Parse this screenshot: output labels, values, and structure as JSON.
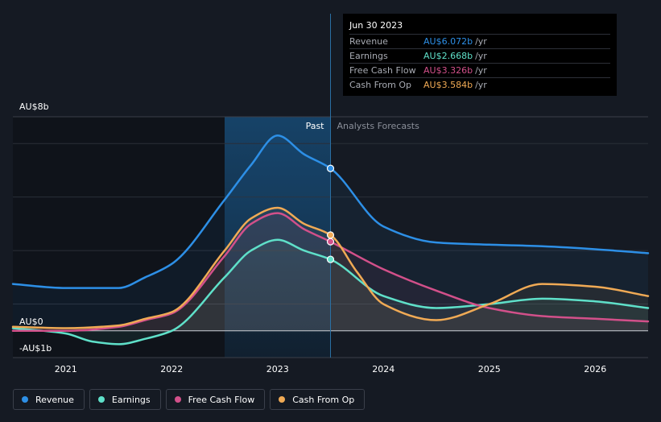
{
  "tooltip": {
    "date": "Jun 30 2023",
    "rows": [
      {
        "label": "Revenue",
        "value": "AU$6.072b",
        "unit": "/yr",
        "color": "#2d8fe6"
      },
      {
        "label": "Earnings",
        "value": "AU$2.668b",
        "unit": "/yr",
        "color": "#5fe0c9"
      },
      {
        "label": "Free Cash Flow",
        "value": "AU$3.326b",
        "unit": "/yr",
        "color": "#d2508a"
      },
      {
        "label": "Cash From Op",
        "value": "AU$3.584b",
        "unit": "/yr",
        "color": "#f0aa55"
      }
    ]
  },
  "legend": [
    {
      "label": "Revenue",
      "color": "#2d8fe6"
    },
    {
      "label": "Earnings",
      "color": "#5fe0c9"
    },
    {
      "label": "Free Cash Flow",
      "color": "#d2508a"
    },
    {
      "label": "Cash From Op",
      "color": "#f0aa55"
    }
  ],
  "chart_data": {
    "type": "line",
    "title": "",
    "y_unit": "AU$ billions",
    "ylim": [
      -1,
      8
    ],
    "xlim": [
      2020.5,
      2026.5
    ],
    "ytick_labels": [
      {
        "value": 8,
        "label": "AU$8b"
      },
      {
        "value": 0,
        "label": "AU$0"
      },
      {
        "value": -1,
        "label": "-AU$1b"
      }
    ],
    "xtick_labels": [
      {
        "value": 2021,
        "label": "2021"
      },
      {
        "value": 2022,
        "label": "2022"
      },
      {
        "value": 2023,
        "label": "2023"
      },
      {
        "value": 2024,
        "label": "2024"
      },
      {
        "value": 2025,
        "label": "2025"
      },
      {
        "value": 2026,
        "label": "2026"
      }
    ],
    "past_label": "Past",
    "forecast_label": "Analysts Forecasts",
    "highlight_range": [
      2022.5,
      2023.5
    ],
    "divider_x": 2023.5,
    "series": [
      {
        "name": "Revenue",
        "color": "#2d8fe6",
        "x": [
          2020.5,
          2021.0,
          2021.5,
          2021.75,
          2022.0,
          2022.5,
          2022.75,
          2023.0,
          2023.25,
          2023.5,
          2024.0,
          2024.5,
          2025.0,
          2025.5,
          2026.0,
          2026.5
        ],
        "y": [
          1.75,
          1.6,
          1.6,
          2.0,
          2.5,
          4.9,
          6.2,
          7.3,
          6.6,
          6.07,
          3.9,
          3.3,
          3.22,
          3.16,
          3.05,
          2.9
        ]
      },
      {
        "name": "Earnings",
        "color": "#5fe0c9",
        "x": [
          2020.5,
          2021.0,
          2021.25,
          2021.5,
          2021.75,
          2022.0,
          2022.5,
          2022.75,
          2023.0,
          2023.25,
          2023.5,
          2024.0,
          2024.5,
          2025.0,
          2025.5,
          2026.0,
          2026.5
        ],
        "y": [
          0.1,
          -0.1,
          -0.4,
          -0.5,
          -0.3,
          0.0,
          2.0,
          3.0,
          3.4,
          3.0,
          2.67,
          1.3,
          0.85,
          1.0,
          1.2,
          1.1,
          0.85
        ]
      },
      {
        "name": "Free Cash Flow",
        "color": "#d2508a",
        "x": [
          2020.5,
          2021.0,
          2021.5,
          2021.75,
          2022.0,
          2022.5,
          2022.75,
          2023.0,
          2023.25,
          2023.5,
          2024.0,
          2024.5,
          2025.0,
          2025.5,
          2026.0,
          2026.5
        ],
        "y": [
          0.0,
          0.0,
          0.15,
          0.4,
          0.65,
          2.8,
          4.0,
          4.4,
          3.8,
          3.33,
          2.3,
          1.5,
          0.85,
          0.55,
          0.45,
          0.35
        ]
      },
      {
        "name": "Cash From Op",
        "color": "#f0aa55",
        "x": [
          2020.5,
          2021.0,
          2021.5,
          2021.75,
          2022.0,
          2022.5,
          2022.75,
          2023.0,
          2023.25,
          2023.5,
          2023.75,
          2024.0,
          2024.5,
          2025.0,
          2025.5,
          2026.0,
          2026.5
        ],
        "y": [
          0.15,
          0.1,
          0.2,
          0.45,
          0.7,
          3.0,
          4.2,
          4.6,
          4.0,
          3.58,
          2.2,
          1.0,
          0.4,
          1.0,
          1.75,
          1.65,
          1.3
        ]
      }
    ],
    "markers": [
      {
        "series": "Revenue",
        "x": 2023.5,
        "y": 6.07
      },
      {
        "series": "Cash From Op",
        "x": 2023.5,
        "y": 3.58
      },
      {
        "series": "Free Cash Flow",
        "x": 2023.5,
        "y": 3.33
      },
      {
        "series": "Earnings",
        "x": 2023.5,
        "y": 2.67
      }
    ]
  }
}
